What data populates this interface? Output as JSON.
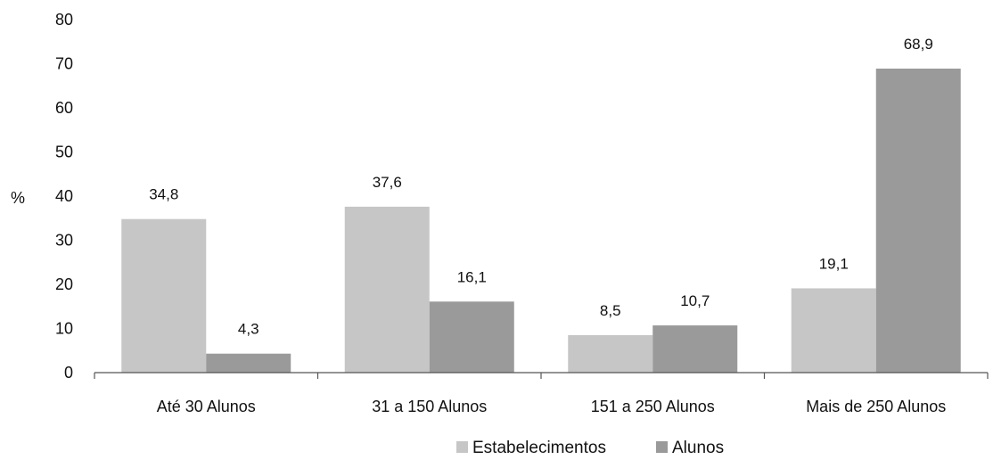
{
  "chart_data": {
    "type": "bar",
    "ylabel": "%",
    "ylim": [
      0,
      80
    ],
    "yticks": [
      0,
      10,
      20,
      30,
      40,
      50,
      60,
      70,
      80
    ],
    "grid": false,
    "legend_position": "bottom",
    "categories": [
      "Até 30 Alunos",
      "31 a 150 Alunos",
      "151 a 250 Alunos",
      "Mais de 250 Alunos"
    ],
    "series": [
      {
        "name": "Estabelecimentos",
        "values": [
          34.8,
          37.6,
          8.5,
          19.1
        ],
        "labels": [
          "34,8",
          "37,6",
          "8,5",
          "19,1"
        ],
        "color": "#c6c6c6"
      },
      {
        "name": "Alunos",
        "values": [
          4.3,
          16.1,
          10.7,
          68.9
        ],
        "labels": [
          "4,3",
          "16,1",
          "10,7",
          "68,9"
        ],
        "color": "#9a9a9a"
      }
    ]
  }
}
